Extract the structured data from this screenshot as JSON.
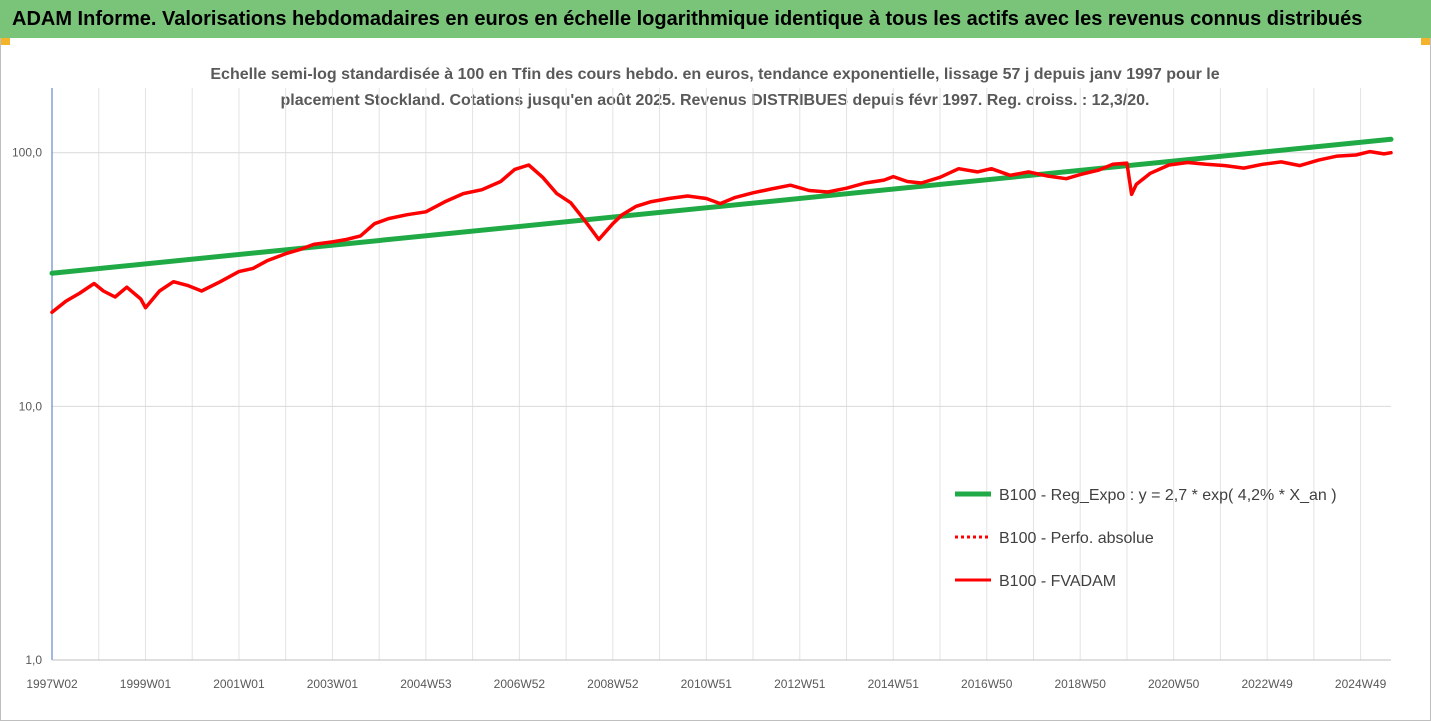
{
  "header": {
    "title": "ADAM Informe. Valorisations hebdomadaires en euros en échelle logarithmique identique à tous les actifs avec les revenus connus distribués"
  },
  "chart_data": {
    "type": "line",
    "title": "Echelle semi-log standardisée à 100 en Tfin des cours hebdo. en euros, tendance exponentielle, lissage 57 j depuis janv 1997 pour le placement Stockland. Cotations jusqu'en août 2025. Revenus DISTRIBUES depuis févr 1997. Reg. croiss. : 12,3/20.",
    "title_lines": [
      "Echelle semi-log standardisée à 100 en Tfin des cours hebdo. en euros, tendance exponentielle, lissage 57 j depuis janv 1997 pour le",
      "placement Stockland. Cotations jusqu'en août 2025. Revenus DISTRIBUES depuis févr 1997. Reg. croiss. : 12,3/20."
    ],
    "y_scale": "log",
    "ylim": [
      1,
      180
    ],
    "xlim": [
      1997.0,
      2025.65
    ],
    "grid": true,
    "legend_position": "bottom-right",
    "y_ticks": [
      {
        "value": 1,
        "label": "1,0"
      },
      {
        "value": 10,
        "label": "10,0"
      },
      {
        "value": 100,
        "label": "100,0"
      }
    ],
    "x_ticks": [
      {
        "value": 1997.0,
        "label": "1997W02"
      },
      {
        "value": 1999.0,
        "label": "1999W01"
      },
      {
        "value": 2001.0,
        "label": "2001W01"
      },
      {
        "value": 2003.0,
        "label": "2003W01"
      },
      {
        "value": 2005.0,
        "label": "2004W53"
      },
      {
        "value": 2007.0,
        "label": "2006W52"
      },
      {
        "value": 2009.0,
        "label": "2008W52"
      },
      {
        "value": 2011.0,
        "label": "2010W51"
      },
      {
        "value": 2013.0,
        "label": "2012W51"
      },
      {
        "value": 2015.0,
        "label": "2014W51"
      },
      {
        "value": 2017.0,
        "label": "2016W50"
      },
      {
        "value": 2019.0,
        "label": "2018W50"
      },
      {
        "value": 2021.0,
        "label": "2020W50"
      },
      {
        "value": 2023.0,
        "label": "2022W49"
      },
      {
        "value": 2025.0,
        "label": "2024W49"
      }
    ],
    "series": [
      {
        "name": "B100 - Reg_Expo : y = 2,7 * exp( 4,2% *  X_an )",
        "color": "#1faa46",
        "style": "solid",
        "x": [
          1997.0,
          2025.65
        ],
        "y": [
          33.5,
          113
        ]
      },
      {
        "name": "B100 - Perfo. absolue",
        "color": "#ff0000",
        "style": "dotted",
        "x": [],
        "y": []
      },
      {
        "name": "B100 - FVADAM",
        "color": "#ff0000",
        "style": "solid",
        "x": [
          1997.0,
          1997.3,
          1997.6,
          1997.9,
          1998.1,
          1998.35,
          1998.6,
          1998.9,
          1999.0,
          1999.3,
          1999.6,
          1999.9,
          2000.2,
          2000.6,
          2001.0,
          2001.3,
          2001.6,
          2002.0,
          2002.3,
          2002.6,
          2003.0,
          2003.3,
          2003.6,
          2003.9,
          2004.2,
          2004.6,
          2005.0,
          2005.4,
          2005.8,
          2006.2,
          2006.6,
          2006.9,
          2007.2,
          2007.5,
          2007.8,
          2008.1,
          2008.4,
          2008.7,
          2009.0,
          2009.2,
          2009.5,
          2009.8,
          2010.2,
          2010.6,
          2011.0,
          2011.3,
          2011.6,
          2012.0,
          2012.4,
          2012.8,
          2013.2,
          2013.6,
          2014.0,
          2014.4,
          2014.8,
          2015.0,
          2015.3,
          2015.6,
          2016.0,
          2016.4,
          2016.8,
          2017.1,
          2017.5,
          2017.9,
          2018.3,
          2018.7,
          2019.0,
          2019.4,
          2019.7,
          2020.0,
          2020.1,
          2020.2,
          2020.5,
          2020.9,
          2021.3,
          2021.7,
          2022.1,
          2022.5,
          2022.9,
          2023.3,
          2023.7,
          2024.1,
          2024.5,
          2024.9,
          2025.2,
          2025.5,
          2025.65
        ],
        "y": [
          23.5,
          26,
          28,
          30.5,
          28.5,
          27,
          29.5,
          26.5,
          24.5,
          28.5,
          31,
          30,
          28.5,
          31,
          34,
          35,
          37.5,
          40,
          41.5,
          43.5,
          44.5,
          45.5,
          47,
          52.5,
          55,
          57,
          58.5,
          64,
          69,
          71.5,
          77,
          86,
          89.5,
          80,
          69,
          63.5,
          54,
          45.5,
          52.5,
          57,
          61.5,
          64,
          66,
          67.5,
          66,
          63,
          66.5,
          69.5,
          72,
          74.5,
          71,
          70,
          72.5,
          76,
          78,
          80.5,
          77,
          76,
          80,
          86.5,
          84,
          86.5,
          81.5,
          84,
          81,
          79,
          82,
          85.5,
          90,
          91,
          68.5,
          75,
          83,
          89.5,
          91.5,
          90,
          89,
          87,
          90,
          92,
          89,
          93.5,
          97,
          98,
          101,
          99,
          100
        ]
      }
    ]
  }
}
